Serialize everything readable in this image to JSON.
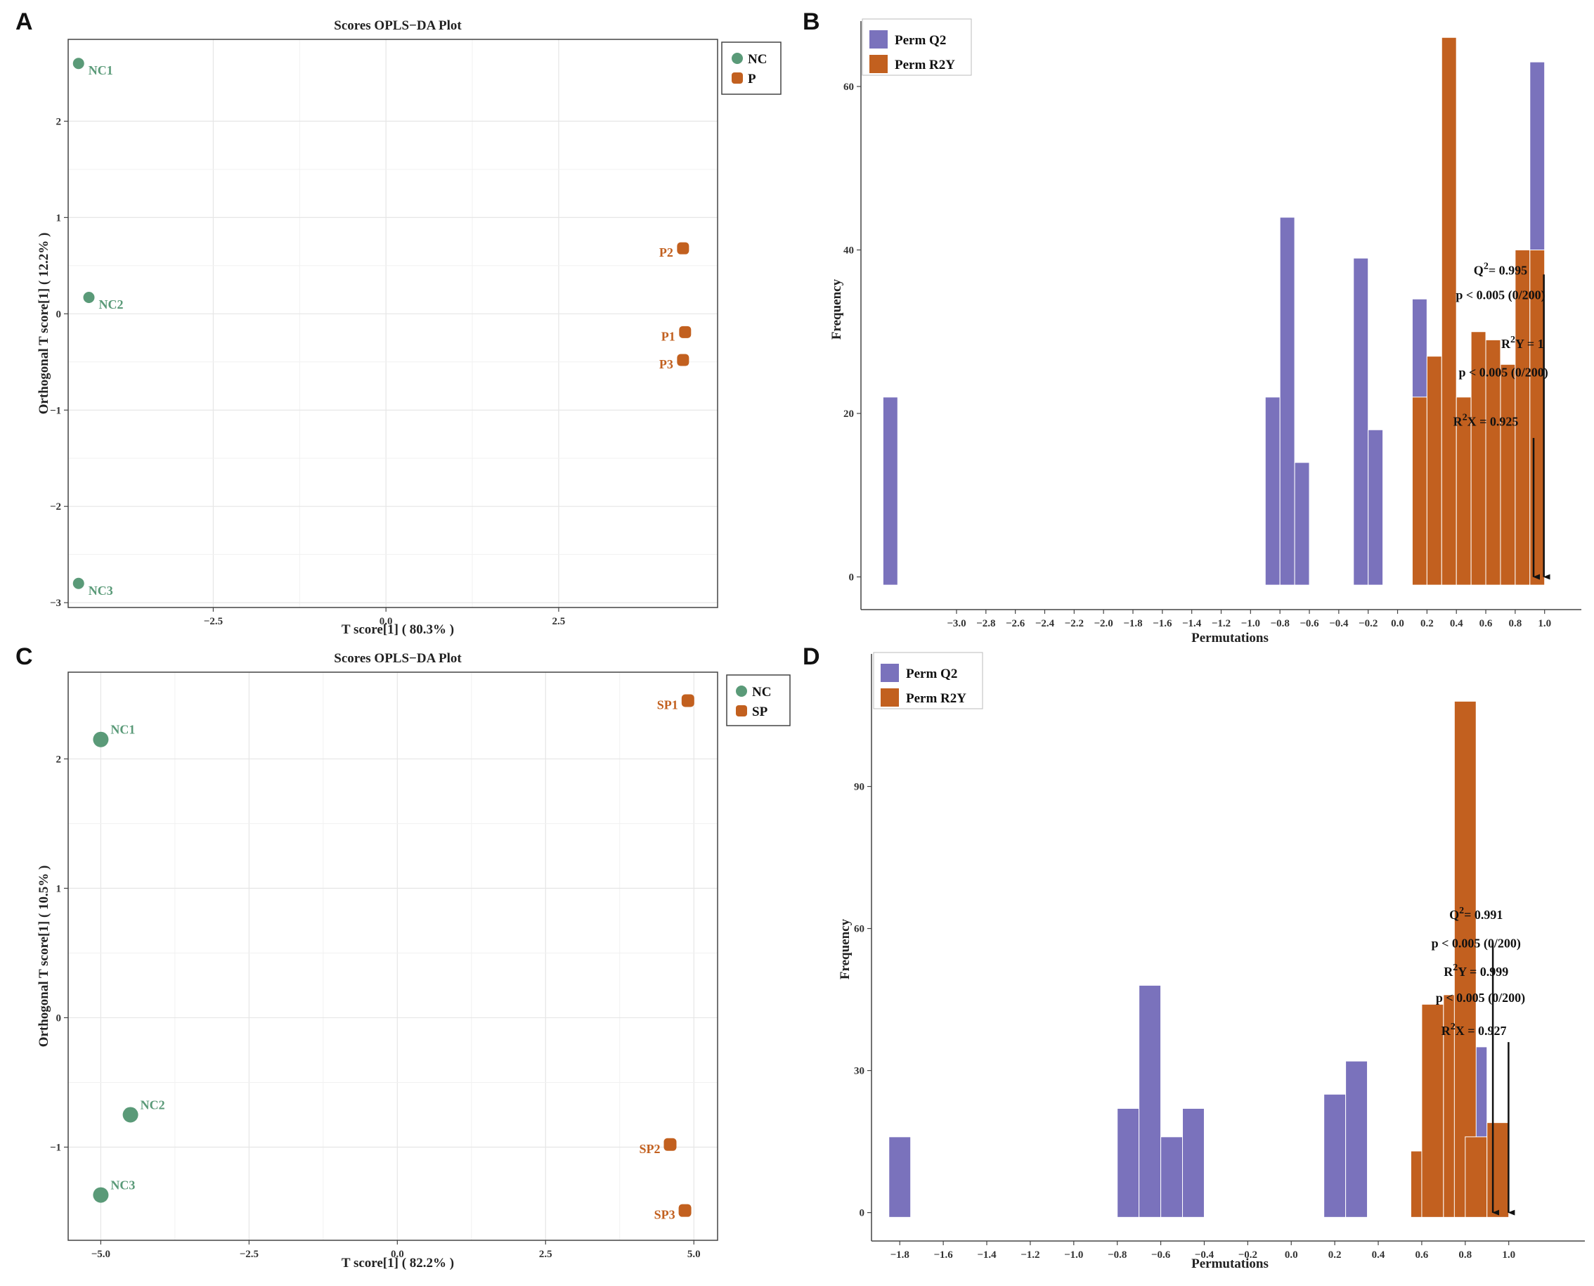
{
  "colors": {
    "nc": "#5a9a78",
    "group": "#c2601f",
    "perm_q2": "#7a72bc",
    "perm_r2y": "#c2601f",
    "grid": "#e6e6e6",
    "frame": "#444444"
  },
  "panels": [
    {
      "id": "A",
      "letter": "A"
    },
    {
      "id": "B",
      "letter": "B"
    },
    {
      "id": "C",
      "letter": "C"
    },
    {
      "id": "D",
      "letter": "D"
    }
  ],
  "chart_data": [
    {
      "panel": "A",
      "type": "scatter",
      "title": "Scores OPLS−DA Plot",
      "xlabel": "T score[1] ( 80.3% )",
      "ylabel": "Orthogonal T score[1] ( 12.2% )",
      "xlim": [
        -4.6,
        4.8
      ],
      "ylim": [
        -3.05,
        2.85
      ],
      "xticks": [
        -2.5,
        0,
        2.5
      ],
      "xtick_labels": [
        "−2.5",
        "0.0",
        "2.5"
      ],
      "yticks": [
        -3,
        -2,
        -1,
        0,
        1,
        2
      ],
      "ytick_labels": [
        "−3",
        "−2",
        "−1",
        "0",
        "1",
        "2"
      ],
      "legend": [
        "NC",
        "P"
      ],
      "series": [
        {
          "name": "NC",
          "shape": "circle",
          "points": [
            {
              "label": "NC1",
              "x": -4.45,
              "y": 2.6
            },
            {
              "label": "NC2",
              "x": -4.3,
              "y": 0.17
            },
            {
              "label": "NC3",
              "x": -4.45,
              "y": -2.8
            }
          ]
        },
        {
          "name": "P",
          "shape": "rounded-square",
          "points": [
            {
              "label": "P2",
              "x": 4.3,
              "y": 0.68
            },
            {
              "label": "P1",
              "x": 4.33,
              "y": -0.19
            },
            {
              "label": "P3",
              "x": 4.3,
              "y": -0.48
            }
          ]
        }
      ]
    },
    {
      "panel": "B",
      "type": "bar",
      "xlabel": "Permutations",
      "ylabel": "Frequency",
      "xlim": [
        -3.65,
        1.25
      ],
      "ylim": [
        -4,
        68
      ],
      "xticks": [
        -3.0,
        -2.8,
        -2.6,
        -2.4,
        -2.2,
        -2.0,
        -1.8,
        -1.6,
        -1.4,
        -1.2,
        -1.0,
        -0.8,
        -0.6,
        -0.4,
        -0.2,
        0.0,
        0.2,
        0.4,
        0.6,
        0.8,
        1.0
      ],
      "xtick_labels": [
        "−3.0",
        "−2.8",
        "−2.6",
        "−2.4",
        "−2.2",
        "−2.0",
        "−1.8",
        "−1.6",
        "−1.4",
        "−1.2",
        "−1.0",
        "−0.8",
        "−0.6",
        "−0.4",
        "−0.2",
        "0.0",
        "0.2",
        "0.4",
        "0.6",
        "0.8",
        "1.0"
      ],
      "yticks": [
        0,
        20,
        40,
        60
      ],
      "ytick_labels": [
        "0",
        "20",
        "40",
        "60"
      ],
      "bar_width": 0.1,
      "series": [
        {
          "name": "Perm Q2",
          "bars": [
            {
              "x": -3.45,
              "value": 22
            },
            {
              "x": -0.85,
              "value": 22
            },
            {
              "x": -0.75,
              "value": 44
            },
            {
              "x": -0.65,
              "value": 14
            },
            {
              "x": -0.25,
              "value": 39
            },
            {
              "x": -0.15,
              "value": 18
            },
            {
              "x": 0.15,
              "value": 34
            },
            {
              "x": 0.95,
              "value": 63
            }
          ]
        },
        {
          "name": "Perm R2Y",
          "bars": [
            {
              "x": 0.15,
              "value": 22
            },
            {
              "x": 0.25,
              "value": 27
            },
            {
              "x": 0.35,
              "value": 66
            },
            {
              "x": 0.45,
              "value": 22
            },
            {
              "x": 0.55,
              "value": 30
            },
            {
              "x": 0.65,
              "value": 29
            },
            {
              "x": 0.75,
              "value": 26
            },
            {
              "x": 0.85,
              "value": 40
            },
            {
              "x": 0.95,
              "value": 40
            }
          ]
        }
      ],
      "legend": [
        "Perm Q2",
        "Perm R2Y"
      ],
      "annotations": [
        {
          "text": "Q²= 0.995",
          "x": 0.7,
          "y": 37
        },
        {
          "text": "p < 0.005 (0/200)",
          "x": 0.7,
          "y": 34
        },
        {
          "text": "R²Y = 1",
          "x": 0.85,
          "y": 28
        },
        {
          "text": "p < 0.005 (0/200)",
          "x": 0.72,
          "y": 24.5
        },
        {
          "text": "R²X = 0.925",
          "x": 0.6,
          "y": 18.5
        }
      ],
      "arrows": [
        {
          "x": 0.995,
          "from": 37,
          "to": 0
        },
        {
          "x": 0.925,
          "from": 17,
          "to": 0
        }
      ]
    },
    {
      "panel": "C",
      "type": "scatter",
      "title": "Scores OPLS−DA Plot",
      "xlabel": "T score[1] ( 82.2% )",
      "ylabel": "Orthogonal T score[1] ( 10.5% )",
      "xlim": [
        -5.55,
        5.4
      ],
      "ylim": [
        -1.72,
        2.67
      ],
      "xticks": [
        -5.0,
        -2.5,
        0,
        2.5,
        5.0
      ],
      "xtick_labels": [
        "−5.0",
        "−2.5",
        "0.0",
        "2.5",
        "5.0"
      ],
      "yticks": [
        -1,
        0,
        1,
        2
      ],
      "ytick_labels": [
        "−1",
        "0",
        "1",
        "2"
      ],
      "legend": [
        "NC",
        "SP"
      ],
      "series": [
        {
          "name": "NC",
          "shape": "circle",
          "points": [
            {
              "label": "NC1",
              "x": -5.0,
              "y": 2.15
            },
            {
              "label": "NC2",
              "x": -4.5,
              "y": -0.75
            },
            {
              "label": "NC3",
              "x": -5.0,
              "y": -1.37
            }
          ]
        },
        {
          "name": "SP",
          "shape": "rounded-square",
          "points": [
            {
              "label": "SP1",
              "x": 4.9,
              "y": 2.45
            },
            {
              "label": "SP2",
              "x": 4.6,
              "y": -0.98
            },
            {
              "label": "SP3",
              "x": 4.85,
              "y": -1.49
            }
          ]
        }
      ]
    },
    {
      "panel": "D",
      "type": "bar",
      "xlabel": "Permutations",
      "ylabel": "Frequency",
      "xlim": [
        -1.93,
        1.35
      ],
      "ylim": [
        -6,
        118
      ],
      "xticks": [
        -1.8,
        -1.6,
        -1.4,
        -1.2,
        -1.0,
        -0.8,
        -0.6,
        -0.4,
        -0.2,
        0.0,
        0.2,
        0.4,
        0.6,
        0.8,
        1.0
      ],
      "xtick_labels": [
        "−1.8",
        "−1.6",
        "−1.4",
        "−1.2",
        "−1.0",
        "−0.8",
        "−0.6",
        "−0.4",
        "−0.2",
        "0.0",
        "0.2",
        "0.4",
        "0.6",
        "0.8",
        "1.0"
      ],
      "yticks": [
        0,
        30,
        60,
        90
      ],
      "ytick_labels": [
        "0",
        "30",
        "60",
        "90"
      ],
      "bar_width": 0.1,
      "series": [
        {
          "name": "Perm Q2",
          "bars": [
            {
              "x": -1.8,
              "value": 16
            },
            {
              "x": -0.75,
              "value": 22
            },
            {
              "x": -0.65,
              "value": 48
            },
            {
              "x": -0.55,
              "value": 16
            },
            {
              "x": -0.45,
              "value": 22
            },
            {
              "x": 0.2,
              "value": 25
            },
            {
              "x": 0.3,
              "value": 32
            },
            {
              "x": 0.85,
              "value": 35
            }
          ]
        },
        {
          "name": "Perm R2Y",
          "bars": [
            {
              "x": 0.6,
              "value": 13
            },
            {
              "x": 0.65,
              "value": 44
            },
            {
              "x": 0.75,
              "value": 46
            },
            {
              "x": 0.8,
              "value": 108
            },
            {
              "x": 0.85,
              "value": 16
            },
            {
              "x": 0.95,
              "value": 19
            }
          ]
        }
      ],
      "legend": [
        "Perm Q2",
        "Perm R2Y"
      ],
      "annotations": [
        {
          "text": "Q²= 0.991",
          "x": 0.85,
          "y": 62
        },
        {
          "text": "p < 0.005 (0/200)",
          "x": 0.85,
          "y": 56
        },
        {
          "text": "R²Y = 0.999",
          "x": 0.85,
          "y": 50
        },
        {
          "text": "p < 0.005 (0/200)",
          "x": 0.87,
          "y": 44.5
        },
        {
          "text": "R²X = 0.927",
          "x": 0.84,
          "y": 37.5
        }
      ],
      "arrows": [
        {
          "x": 0.999,
          "from": 36,
          "to": 0
        },
        {
          "x": 0.927,
          "from": 57,
          "to": 0
        }
      ]
    }
  ]
}
